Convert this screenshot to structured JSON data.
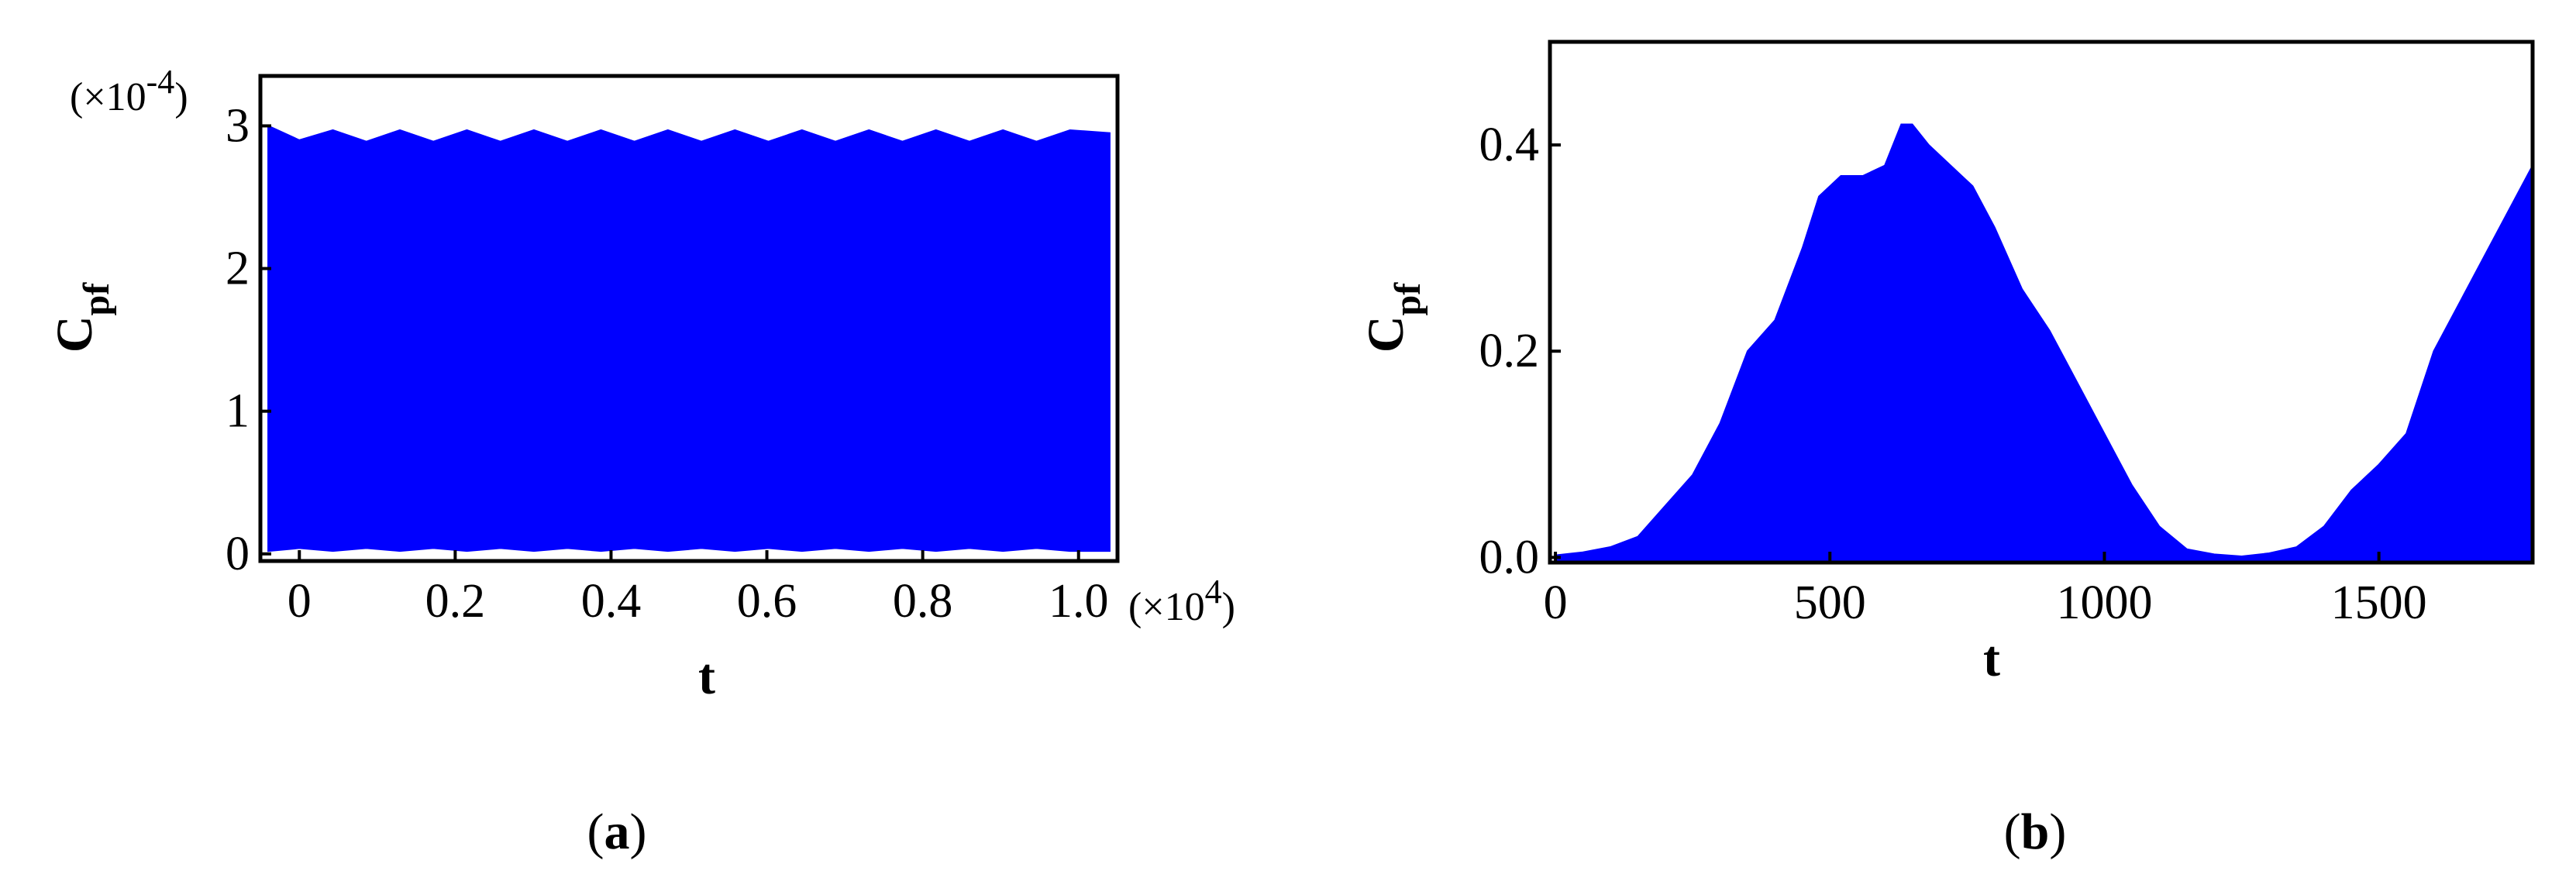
{
  "figure": {
    "panel_labels": [
      "(a)",
      "(b)"
    ],
    "panel_letters": [
      "a",
      "b"
    ]
  },
  "colors": {
    "fill": "#0000ff",
    "axis": "#000000",
    "background": "#ffffff"
  },
  "chart_data": [
    {
      "type": "area",
      "panel": "a",
      "xlabel": "t",
      "ylabel": "C",
      "ylabel_subscript": "pf",
      "x_multiplier": "×10",
      "x_multiplier_exponent": "4",
      "y_multiplier": "×10",
      "y_multiplier_exponent": "-4",
      "xlim": [
        -0.05,
        1.05
      ],
      "ylim": [
        -0.05,
        3.35
      ],
      "x_ticks": [
        0,
        0.2,
        0.4,
        0.6,
        0.8,
        1.0
      ],
      "x_tick_labels": [
        "0",
        "0.2",
        "0.4",
        "0.6",
        "0.8",
        "1.0"
      ],
      "y_ticks": [
        0,
        1,
        2,
        3
      ],
      "y_tick_labels": [
        "0",
        "1",
        "2",
        "3"
      ],
      "grid": false,
      "description_of_signal": "rapid oscillation between ~0 and ~2.9 with slowly modulated upper envelope",
      "series": [
        {
          "x": [
            -0.04,
            0.0,
            0.043,
            0.086,
            0.129,
            0.172,
            0.215,
            0.258,
            0.301,
            0.344,
            0.387,
            0.43,
            0.473,
            0.516,
            0.559,
            0.602,
            0.645,
            0.688,
            0.731,
            0.774,
            0.817,
            0.86,
            0.903,
            0.946,
            0.989,
            1.04
          ],
          "y_upper": [
            3.0,
            2.9,
            2.97,
            2.89,
            2.97,
            2.89,
            2.97,
            2.89,
            2.97,
            2.89,
            2.97,
            2.89,
            2.97,
            2.89,
            2.97,
            2.89,
            2.97,
            2.89,
            2.97,
            2.89,
            2.97,
            2.89,
            2.97,
            2.89,
            2.97,
            2.95
          ],
          "y_lower": [
            0.02,
            0.04,
            0.02,
            0.04,
            0.02,
            0.04,
            0.02,
            0.04,
            0.02,
            0.04,
            0.02,
            0.04,
            0.02,
            0.04,
            0.02,
            0.04,
            0.02,
            0.04,
            0.02,
            0.04,
            0.02,
            0.04,
            0.02,
            0.04,
            0.02,
            0.02
          ]
        }
      ]
    },
    {
      "type": "area",
      "panel": "b",
      "xlabel": "t",
      "ylabel": "C",
      "ylabel_subscript": "pf",
      "xlim": [
        -10,
        1780
      ],
      "ylim": [
        -0.005,
        0.5
      ],
      "x_ticks": [
        0,
        500,
        1000,
        1500
      ],
      "x_tick_labels": [
        "0",
        "500",
        "1000",
        "1500"
      ],
      "y_ticks": [
        0.0,
        0.2,
        0.4
      ],
      "y_tick_labels": [
        "0.0",
        "0.2",
        "0.4"
      ],
      "grid": false,
      "series": [
        {
          "x": [
            0,
            50,
            100,
            150,
            200,
            250,
            300,
            350,
            400,
            450,
            480,
            520,
            560,
            600,
            630,
            650,
            680,
            720,
            760,
            800,
            850,
            900,
            950,
            1000,
            1050,
            1100,
            1150,
            1200,
            1250,
            1300,
            1350,
            1400,
            1450,
            1500,
            1550,
            1600,
            1650,
            1700,
            1750,
            1780
          ],
          "y": [
            0.002,
            0.005,
            0.01,
            0.02,
            0.05,
            0.08,
            0.13,
            0.2,
            0.23,
            0.3,
            0.35,
            0.37,
            0.37,
            0.38,
            0.42,
            0.42,
            0.4,
            0.38,
            0.36,
            0.32,
            0.26,
            0.22,
            0.17,
            0.12,
            0.07,
            0.03,
            0.008,
            0.003,
            0.001,
            0.004,
            0.01,
            0.03,
            0.065,
            0.09,
            0.12,
            0.2,
            0.25,
            0.3,
            0.35,
            0.38
          ]
        }
      ]
    }
  ]
}
